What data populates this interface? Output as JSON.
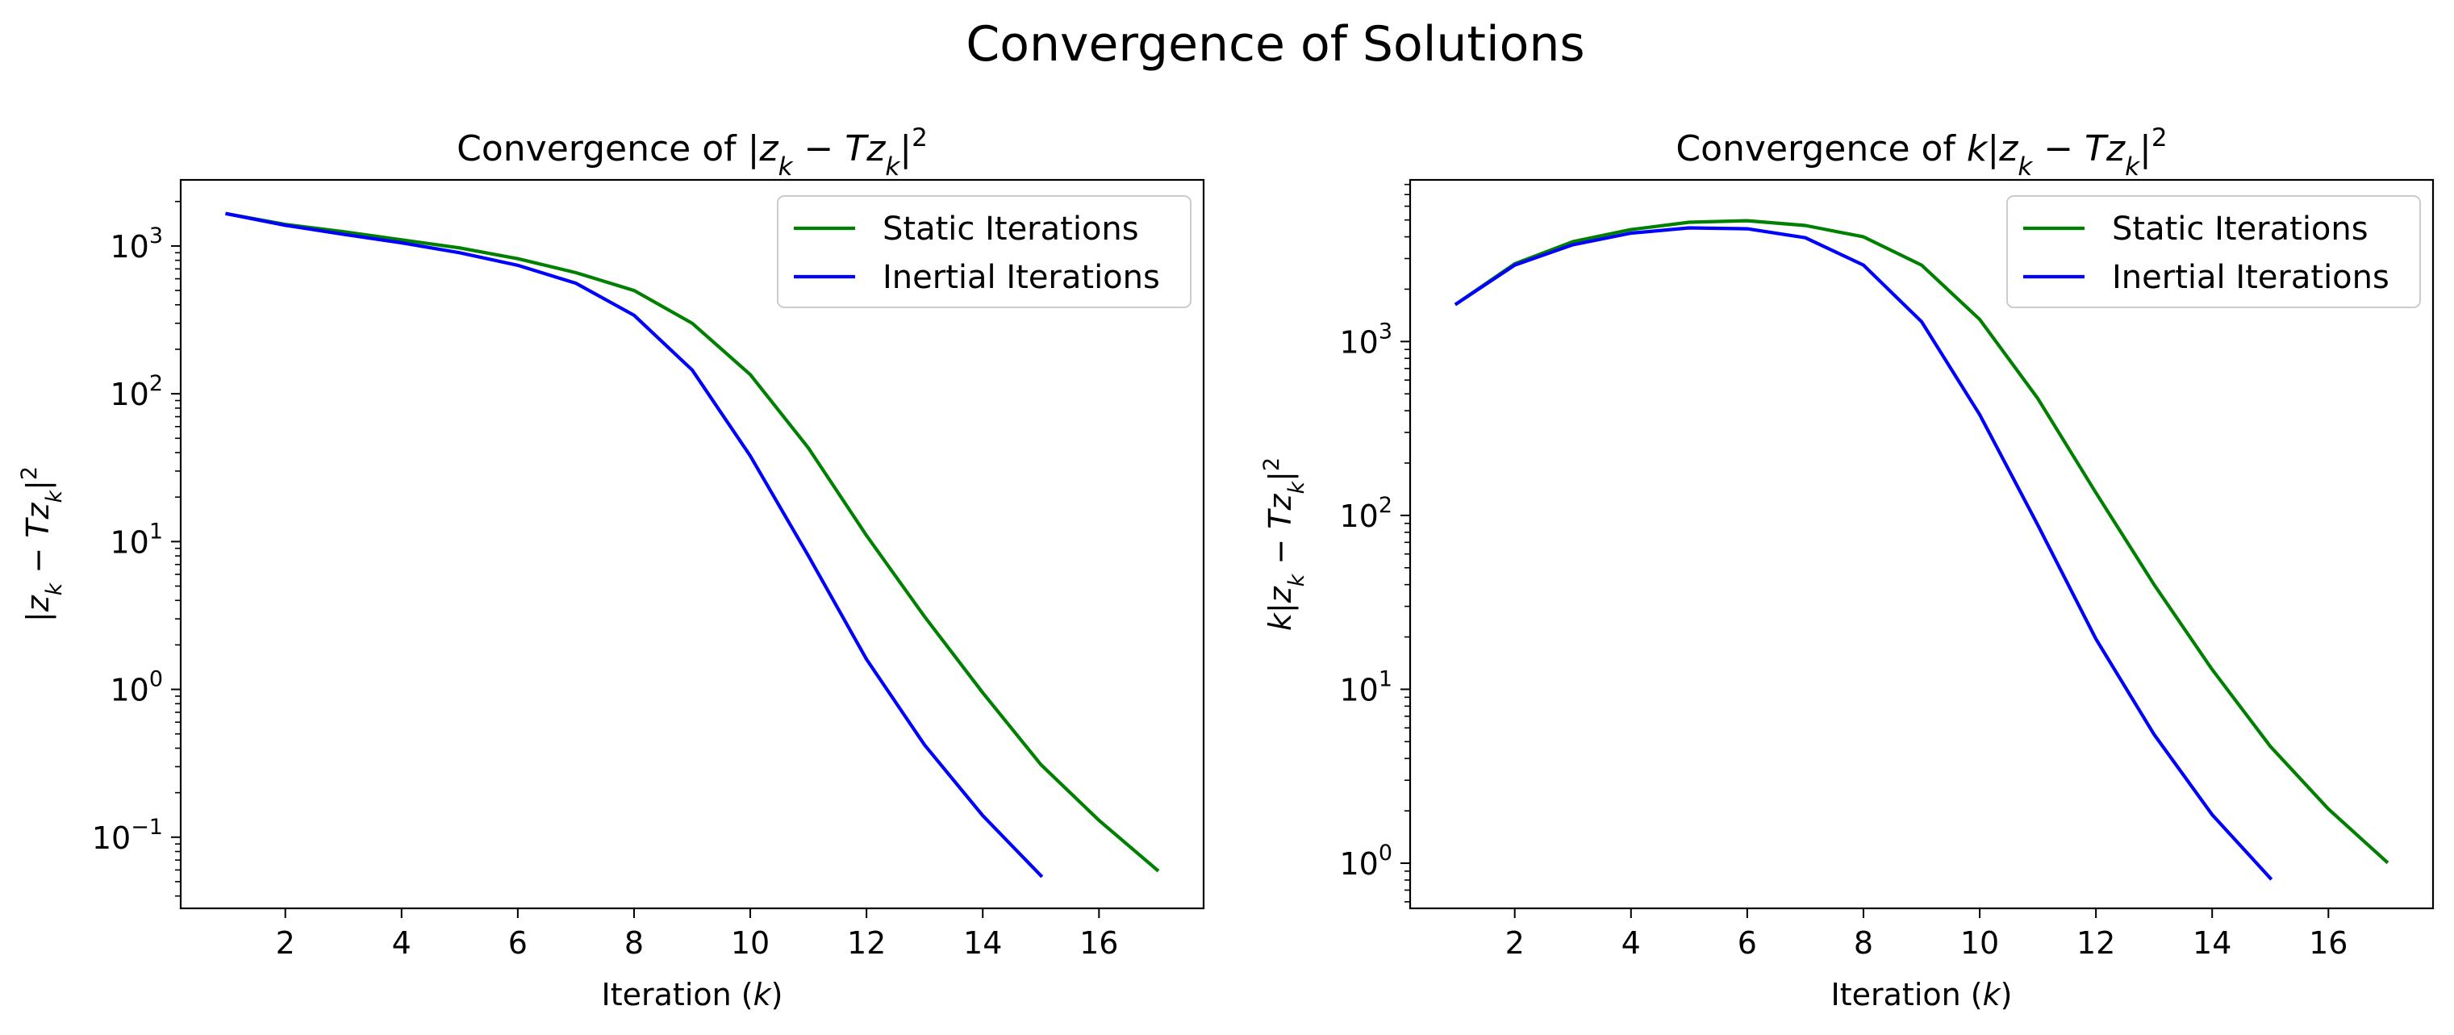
{
  "figure_title": "Convergence of Solutions",
  "chart_data": [
    {
      "type": "line",
      "title": "Convergence of |z_k − Tz_k|²",
      "title_parts": {
        "prefix": "Convergence of ",
        "text": "|z",
        "sub1": "k",
        "mid": " − Tz",
        "sub2": "k",
        "close": "|",
        "sup": "2"
      },
      "xlabel": "Iteration (k)",
      "xlabel_parts": {
        "text": "Iteration (",
        "var": "k",
        "close": ")"
      },
      "ylabel": "|z_k − Tz_k|²",
      "ylabel_parts": {
        "text": "|z",
        "sub1": "k",
        "mid": " − Tz",
        "sub2": "k",
        "close": "|",
        "sup": "2"
      },
      "yscale": "log",
      "xlim": [
        0.2,
        17.8
      ],
      "ylim": [
        0.033,
        2800
      ],
      "xticks": [
        2,
        4,
        6,
        8,
        10,
        12,
        14,
        16
      ],
      "yticks": [
        {
          "value": 0.1,
          "base": "10",
          "exp": "−1"
        },
        {
          "value": 1,
          "base": "10",
          "exp": "0"
        },
        {
          "value": 10,
          "base": "10",
          "exp": "1"
        },
        {
          "value": 100,
          "base": "10",
          "exp": "2"
        },
        {
          "value": 1000,
          "base": "10",
          "exp": "3"
        }
      ],
      "legend_position": "top-right",
      "grid": false,
      "series": [
        {
          "name": "Static Iterations",
          "color": "#008000",
          "x": [
            1,
            2,
            3,
            4,
            5,
            6,
            7,
            8,
            9,
            10,
            11,
            12,
            13,
            14,
            15,
            16,
            17
          ],
          "y": [
            1650,
            1400,
            1250,
            1100,
            970,
            820,
            660,
            500,
            300,
            135,
            43,
            11,
            3.1,
            0.95,
            0.31,
            0.13,
            0.06
          ]
        },
        {
          "name": "Inertial Iterations",
          "color": "#0000ff",
          "x": [
            1,
            2,
            3,
            4,
            5,
            6,
            7,
            8,
            9,
            10,
            11,
            12,
            13,
            14,
            15
          ],
          "y": [
            1650,
            1380,
            1200,
            1050,
            900,
            740,
            560,
            340,
            145,
            38,
            8,
            1.6,
            0.42,
            0.14,
            0.055
          ]
        }
      ]
    },
    {
      "type": "line",
      "title": "Convergence of k|z_k − Tz_k|²",
      "title_parts": {
        "prefix": "Convergence of ",
        "pre": "k",
        "text": "|z",
        "sub1": "k",
        "mid": " − Tz",
        "sub2": "k",
        "close": "|",
        "sup": "2"
      },
      "xlabel": "Iteration (k)",
      "xlabel_parts": {
        "text": "Iteration (",
        "var": "k",
        "close": ")"
      },
      "ylabel": "k|z_k − Tz_k|²",
      "ylabel_parts": {
        "pre": "k",
        "text": "|z",
        "sub1": "k",
        "mid": " − Tz",
        "sub2": "k",
        "close": "|",
        "sup": "2"
      },
      "yscale": "log",
      "xlim": [
        0.2,
        17.8
      ],
      "ylim": [
        0.55,
        8500
      ],
      "xticks": [
        2,
        4,
        6,
        8,
        10,
        12,
        14,
        16
      ],
      "yticks": [
        {
          "value": 1,
          "base": "10",
          "exp": "0"
        },
        {
          "value": 10,
          "base": "10",
          "exp": "1"
        },
        {
          "value": 100,
          "base": "10",
          "exp": "2"
        },
        {
          "value": 1000,
          "base": "10",
          "exp": "3"
        }
      ],
      "legend_position": "top-right",
      "grid": false,
      "series": [
        {
          "name": "Static Iterations",
          "color": "#008000",
          "x": [
            1,
            2,
            3,
            4,
            5,
            6,
            7,
            8,
            9,
            10,
            11,
            12,
            13,
            14,
            15,
            16,
            17
          ],
          "y": [
            1650,
            2800,
            3750,
            4400,
            4850,
            4950,
            4650,
            4000,
            2750,
            1340,
            470,
            135,
            40,
            13,
            4.7,
            2.05,
            1.02
          ]
        },
        {
          "name": "Inertial Iterations",
          "color": "#0000ff",
          "x": [
            1,
            2,
            3,
            4,
            5,
            6,
            7,
            8,
            9,
            10,
            11,
            12,
            13,
            14,
            15
          ],
          "y": [
            1650,
            2750,
            3600,
            4200,
            4500,
            4450,
            3950,
            2750,
            1300,
            380,
            88,
            19.5,
            5.5,
            1.9,
            0.82
          ]
        }
      ]
    }
  ]
}
